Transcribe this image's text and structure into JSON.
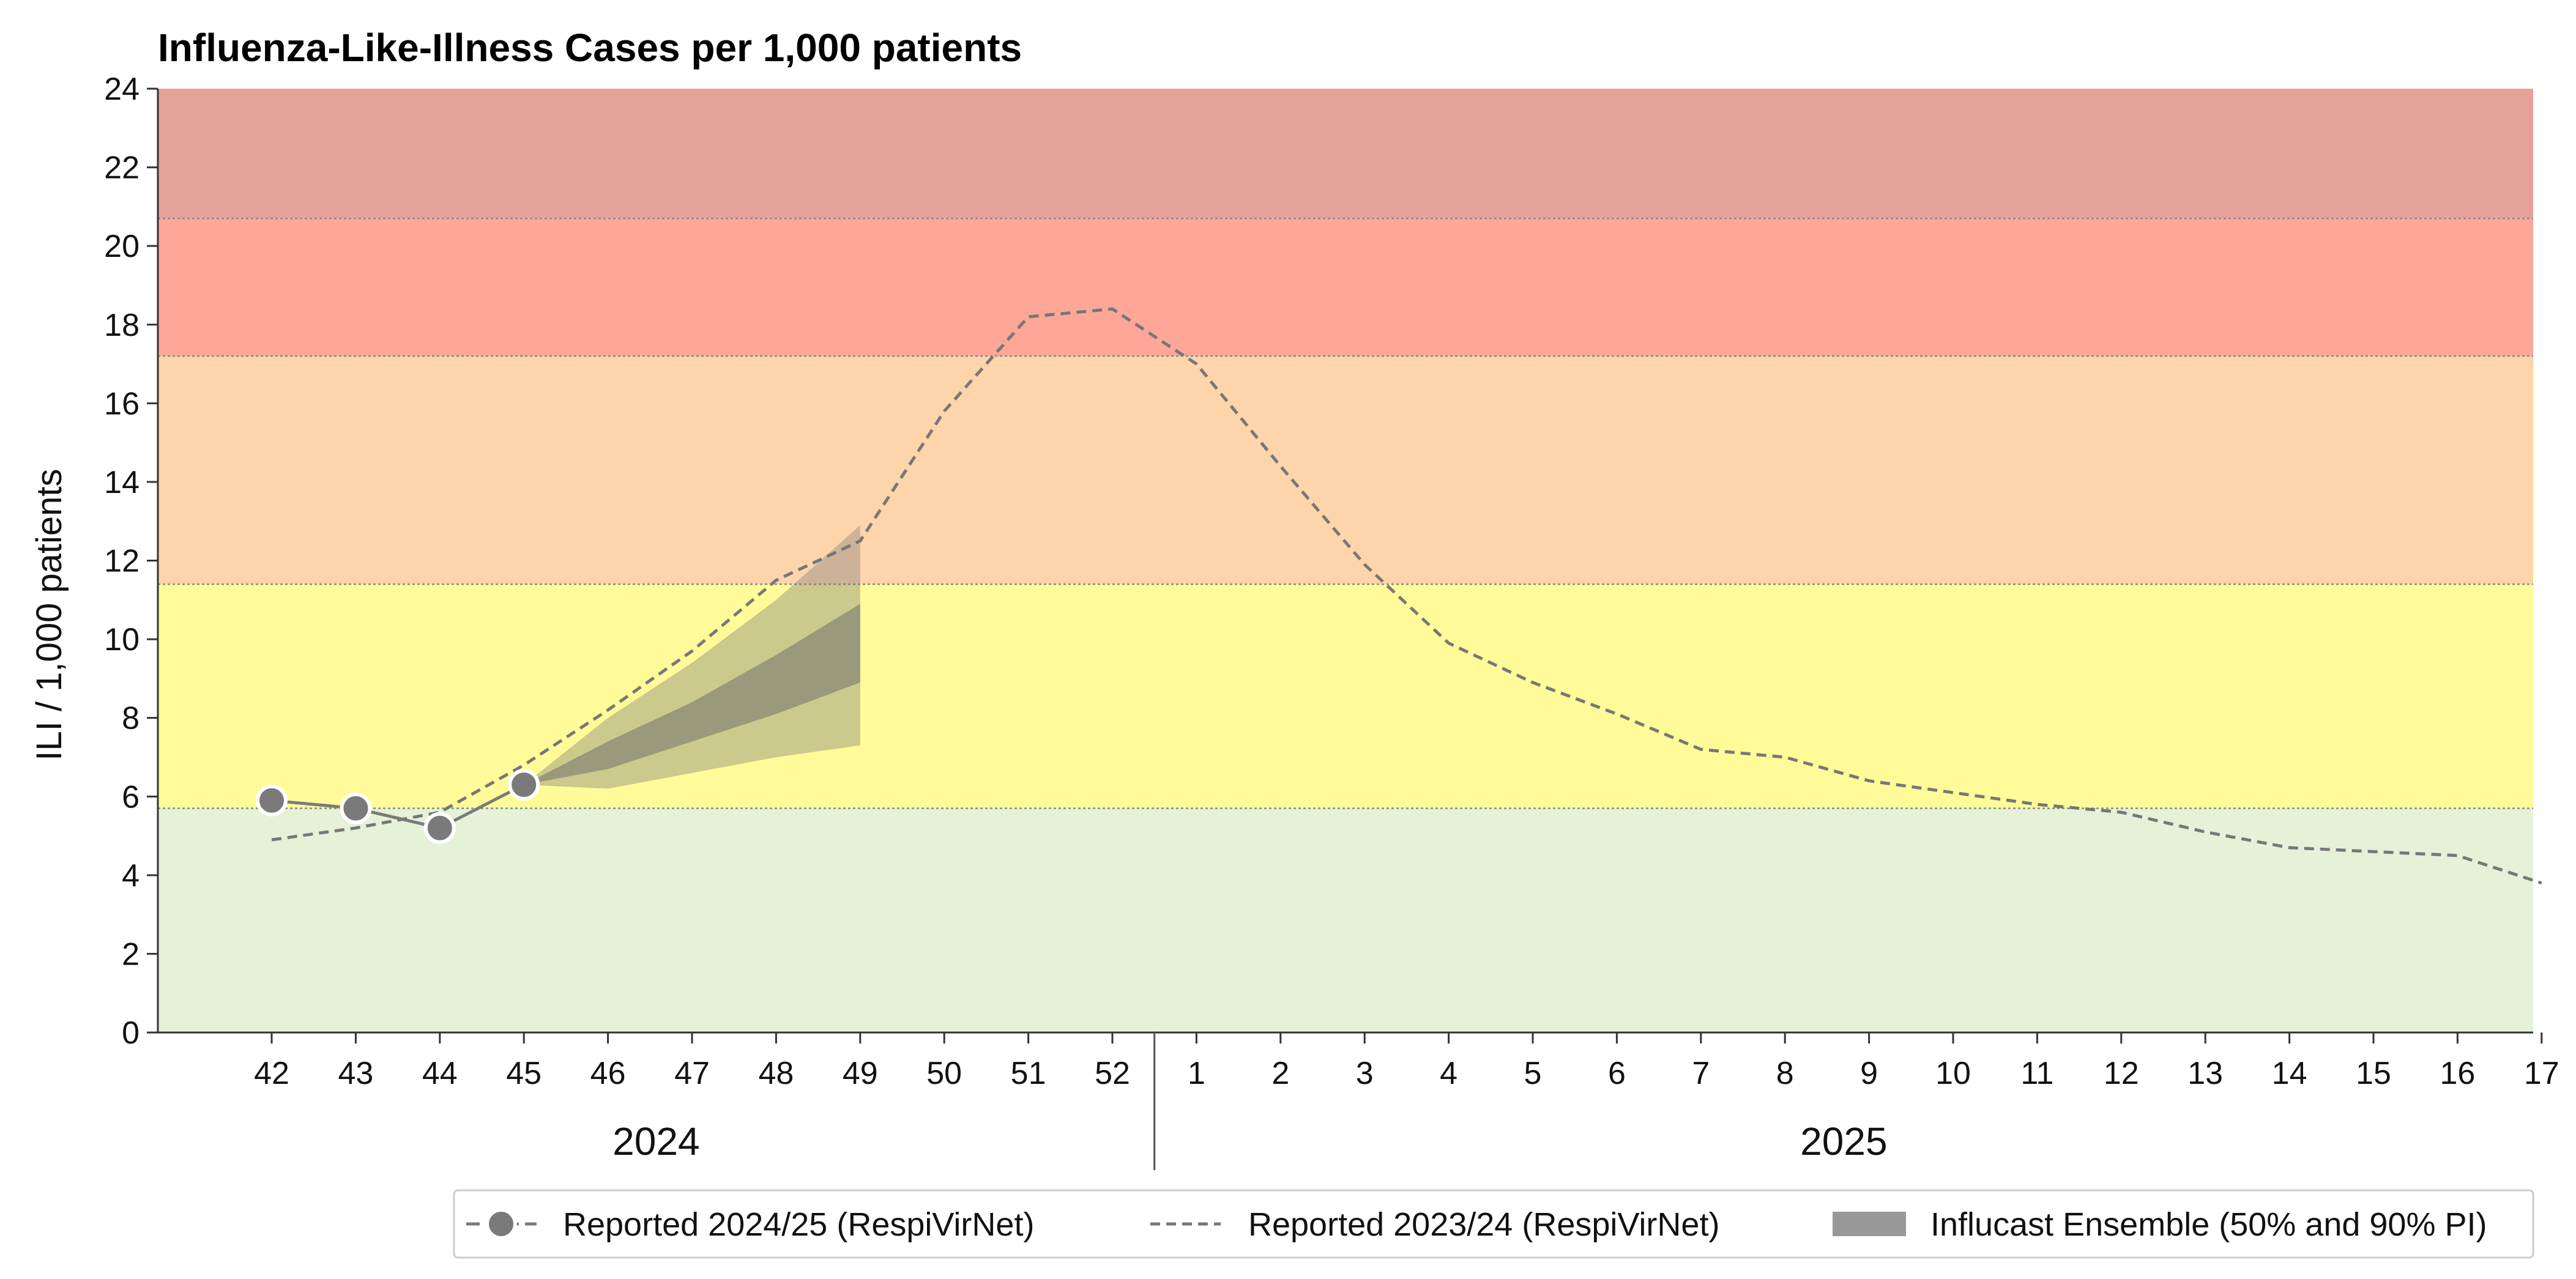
{
  "chart_data": {
    "type": "line",
    "title": "Influenza-Like-Illness Cases per 1,000 patients",
    "ylabel": "ILI / 1,000 patients",
    "xlabel": "",
    "ylim": [
      0,
      24
    ],
    "yticks": [
      0,
      2,
      4,
      6,
      8,
      10,
      12,
      14,
      16,
      18,
      20,
      22,
      24
    ],
    "grid": false,
    "weeks": [
      "42",
      "43",
      "44",
      "45",
      "46",
      "47",
      "48",
      "49",
      "50",
      "51",
      "52",
      "1",
      "2",
      "3",
      "4",
      "5",
      "6",
      "7",
      "8",
      "9",
      "10",
      "11",
      "12",
      "13",
      "14",
      "15",
      "16",
      "17"
    ],
    "year_groups": [
      {
        "label": "2024",
        "first_week": "42",
        "last_week": "52"
      },
      {
        "label": "2025",
        "first_week": "1",
        "last_week": "17"
      }
    ],
    "intensity_bands": [
      {
        "from": 0,
        "to": 5.7,
        "color": "#e6f2d7"
      },
      {
        "from": 5.7,
        "to": 11.4,
        "color": "#fefb98"
      },
      {
        "from": 11.4,
        "to": 17.2,
        "color": "#fed5ab"
      },
      {
        "from": 17.2,
        "to": 20.7,
        "color": "#fea698"
      },
      {
        "from": 20.7,
        "to": 24,
        "color": "#e6a299"
      }
    ],
    "series": [
      {
        "name": "Reported 2024/25 (RespiVirNet)",
        "style": "solid-markers",
        "color": "#7a7a7a",
        "x": [
          "42",
          "43",
          "44",
          "45"
        ],
        "values": [
          5.9,
          5.7,
          5.2,
          6.3
        ]
      },
      {
        "name": "Reported 2023/24 (RespiVirNet)",
        "style": "dashed",
        "color": "#777777",
        "x": [
          "42",
          "43",
          "44",
          "45",
          "46",
          "47",
          "48",
          "49",
          "50",
          "51",
          "52",
          "1",
          "2",
          "3",
          "4",
          "5",
          "6",
          "7",
          "8",
          "9",
          "10",
          "11",
          "12",
          "13",
          "14",
          "15",
          "16",
          "17"
        ],
        "values": [
          4.9,
          5.2,
          5.6,
          6.8,
          8.2,
          9.7,
          11.5,
          12.5,
          15.8,
          18.2,
          18.4,
          17.0,
          14.4,
          11.9,
          9.9,
          8.9,
          8.1,
          7.2,
          7.0,
          6.4,
          6.1,
          5.8,
          5.6,
          5.1,
          4.7,
          4.6,
          4.5,
          3.8
        ]
      },
      {
        "name": "Influcast Ensemble (50% and 90% PI)",
        "style": "band",
        "color": "#888888",
        "x": [
          "45",
          "46",
          "47",
          "48",
          "49"
        ],
        "pi90_lower": [
          6.3,
          6.2,
          6.6,
          7.0,
          7.3
        ],
        "pi90_upper": [
          6.3,
          8.0,
          9.4,
          11.0,
          12.9
        ],
        "pi50_lower": [
          6.3,
          6.7,
          7.4,
          8.1,
          8.9
        ],
        "pi50_upper": [
          6.3,
          7.4,
          8.4,
          9.6,
          10.9
        ]
      }
    ],
    "legend": {
      "placement": "bottom-right",
      "items": [
        {
          "label": "Reported 2024/25 (RespiVirNet)",
          "symbol": "line-marker"
        },
        {
          "label": "Reported 2023/24 (RespiVirNet)",
          "symbol": "dashed-line"
        },
        {
          "label": "Influcast Ensemble (50% and 90% PI)",
          "symbol": "patch"
        }
      ]
    }
  }
}
